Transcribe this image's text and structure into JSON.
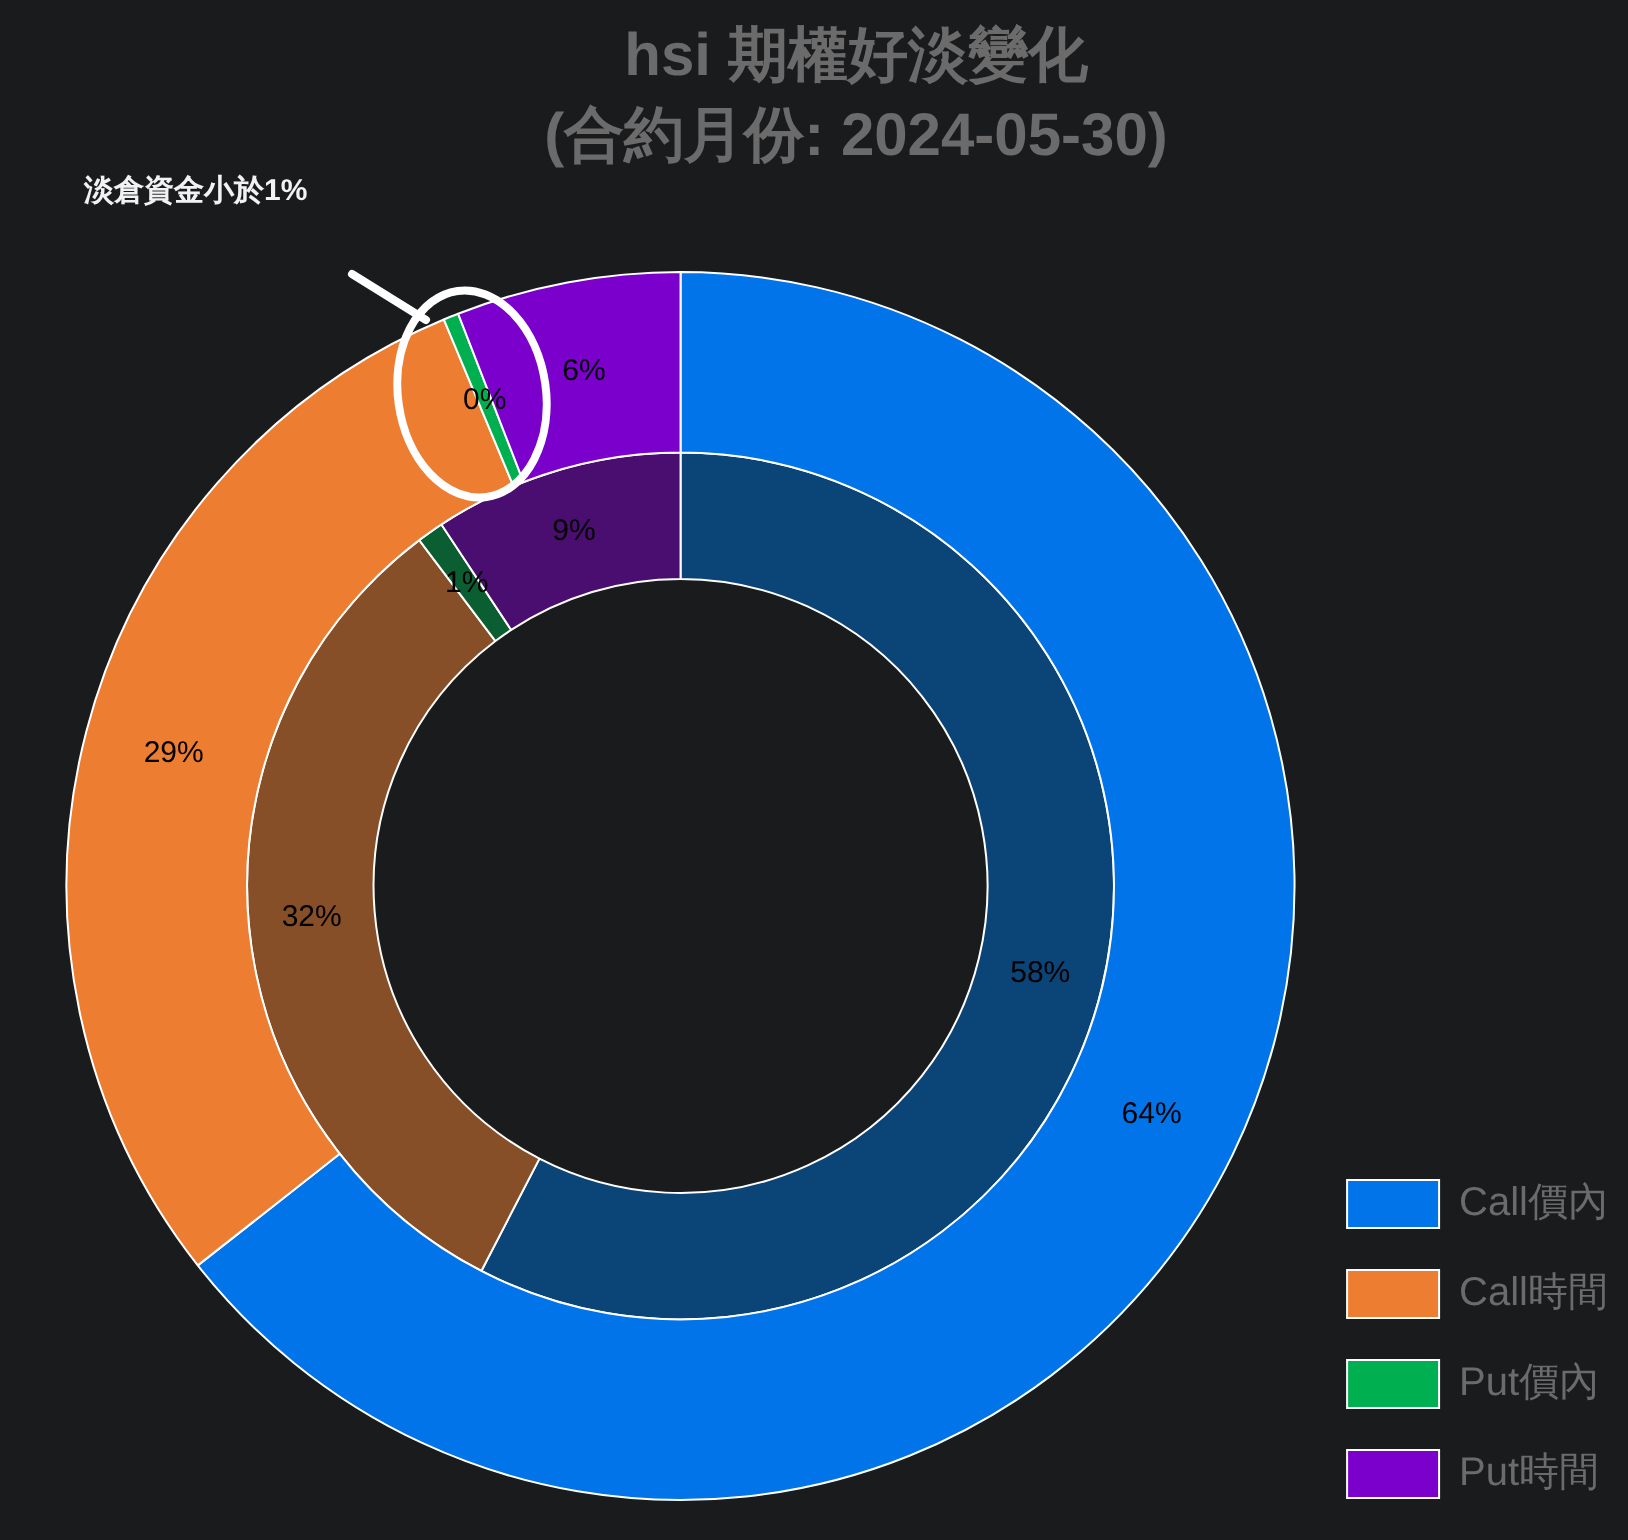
{
  "chart_data": {
    "type": "donut",
    "title": "hsi 期權好淡變化\n(合約月份: 2024-05-30)",
    "categories": [
      "Call價內",
      "Call時間",
      "Put價內",
      "Put時間"
    ],
    "series": [
      {
        "values": [
          64.4,
          29.3,
          0.4,
          5.9
        ],
        "colors": [
          "#0074e8",
          "#ed7d31",
          "#00b050",
          "#7b00cc"
        ],
        "value_labels": [
          "64%",
          "29%",
          "0%",
          "6%"
        ]
      },
      {
        "values": [
          57.6,
          32.1,
          1.0,
          9.3
        ],
        "colors": [
          "#0b4477",
          "#874f27",
          "#0b5e32",
          "#4a0d70"
        ],
        "value_labels": [
          "58%",
          "32%",
          "1%",
          "9%"
        ]
      }
    ],
    "legend": "bottom right",
    "annotations": [
      "淡倉資金小於1%"
    ]
  }
}
